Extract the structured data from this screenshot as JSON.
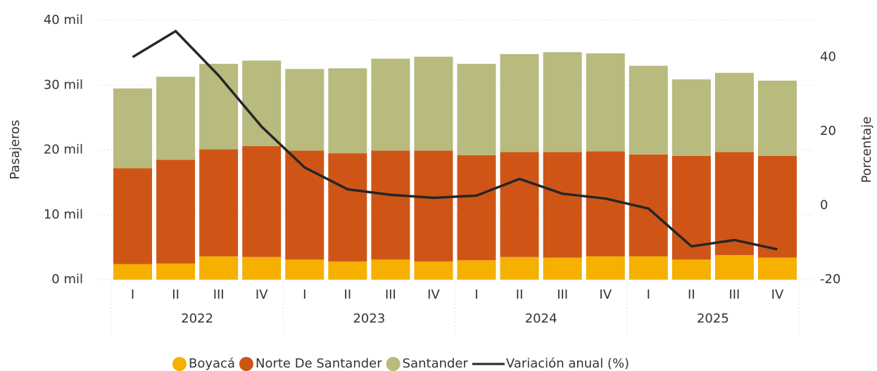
{
  "chart_data": {
    "type": "bar",
    "stacked": true,
    "y_label": "Pasajeros",
    "y2_label": "Porcentaje",
    "categories": [
      "I",
      "II",
      "III",
      "IV",
      "I",
      "II",
      "III",
      "IV",
      "I",
      "II",
      "III",
      "IV",
      "I",
      "II",
      "III",
      "IV"
    ],
    "x_groups": [
      "2022",
      "2023",
      "2024",
      "2025"
    ],
    "series": [
      {
        "name": "Boyacá",
        "color": "#f5b000",
        "values": [
          2400,
          2500,
          3600,
          3500,
          3100,
          2800,
          3100,
          2800,
          3000,
          3500,
          3400,
          3600,
          3600,
          3100,
          3800,
          3400
        ]
      },
      {
        "name": "Norte De Santander",
        "color": "#cf5516",
        "values": [
          14800,
          16000,
          16500,
          17100,
          16800,
          16700,
          16800,
          17100,
          16200,
          16200,
          16300,
          16200,
          15700,
          16000,
          15900,
          15700
        ]
      },
      {
        "name": "Santander",
        "color": "#b8ba7e",
        "values": [
          12300,
          12800,
          13200,
          13200,
          12600,
          13100,
          14200,
          14500,
          14100,
          15100,
          15400,
          15100,
          13700,
          11800,
          12200,
          11600
        ]
      },
      {
        "name": "Variación anual (%)",
        "type": "line",
        "axis": "y2",
        "color": "#262626",
        "values": [
          40.1,
          47.1,
          35.1,
          21.3,
          10.3,
          4.4,
          2.9,
          2.1,
          2.7,
          7.2,
          3.2,
          1.9,
          -0.8,
          -11.0,
          -9.3,
          -11.8
        ]
      }
    ],
    "ylim": [
      0,
      40000
    ],
    "yticks": [
      {
        "value": 0,
        "label": "0 mil"
      },
      {
        "value": 10000,
        "label": "10 mil"
      },
      {
        "value": 20000,
        "label": "20 mil"
      },
      {
        "value": 30000,
        "label": "30 mil"
      },
      {
        "value": 40000,
        "label": "40 mil"
      }
    ],
    "y2lim": [
      -20,
      50
    ],
    "y2ticks": [
      -20,
      0,
      20,
      40
    ],
    "grid": true,
    "legend": "bottom"
  }
}
